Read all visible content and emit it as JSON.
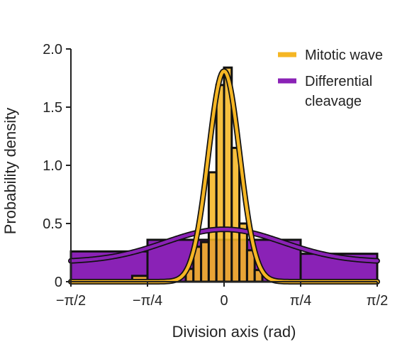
{
  "chart_data": {
    "type": "histogram",
    "title": "",
    "xlabel": "Division axis (rad)",
    "ylabel": "Probability density",
    "xlim": [
      -1.5708,
      1.5708
    ],
    "ylim": [
      0,
      2.0
    ],
    "x_ticks": [
      {
        "value": -1.5708,
        "label": "−π/2"
      },
      {
        "value": -0.7854,
        "label": "−π/4"
      },
      {
        "value": 0,
        "label": "0"
      },
      {
        "value": 0.7854,
        "label": "π/4"
      },
      {
        "value": 1.5708,
        "label": "π/2"
      }
    ],
    "y_ticks": [
      {
        "value": 0,
        "label": "0"
      },
      {
        "value": 0.5,
        "label": "0.5"
      },
      {
        "value": 1.0,
        "label": "1.0"
      },
      {
        "value": 1.5,
        "label": "1.5"
      },
      {
        "value": 2.0,
        "label": "2.0"
      }
    ],
    "legend_position": "top-right",
    "series": [
      {
        "name": "Differential cleavage",
        "color": "#8a22b6",
        "bins": [
          {
            "x0": -1.5708,
            "x1": -0.7854,
            "y": 0.26
          },
          {
            "x0": -0.7854,
            "x1": 0.7854,
            "y": 0.36
          },
          {
            "x0": 0.7854,
            "x1": 1.5708,
            "y": 0.24
          }
        ],
        "fit": {
          "kind": "gaussian",
          "peak": 0.45,
          "center": 0,
          "sigma": 0.6,
          "baseline": 0.17
        }
      },
      {
        "name": "Mitotic wave",
        "color": "#f5b624",
        "bins": [
          {
            "x0": -0.9425,
            "x1": -0.7854,
            "y": 0.05
          },
          {
            "x0": -0.3927,
            "x1": -0.3142,
            "y": 0.11
          },
          {
            "x0": -0.3142,
            "x1": -0.2356,
            "y": 0.3
          },
          {
            "x0": -0.2356,
            "x1": -0.1571,
            "y": 0.34
          },
          {
            "x0": -0.1571,
            "x1": -0.0785,
            "y": 0.94
          },
          {
            "x0": -0.0785,
            "x1": 0.0,
            "y": 1.69
          },
          {
            "x0": 0.0,
            "x1": 0.0785,
            "y": 1.84
          },
          {
            "x0": 0.0785,
            "x1": 0.1571,
            "y": 1.15
          },
          {
            "x0": 0.1571,
            "x1": 0.2356,
            "y": 0.5
          },
          {
            "x0": 0.2356,
            "x1": 0.3142,
            "y": 0.27
          },
          {
            "x0": 0.3142,
            "x1": 0.3927,
            "y": 0.1
          }
        ],
        "fit": {
          "kind": "gaussian",
          "peak": 1.81,
          "center": 0,
          "sigma": 0.16,
          "baseline": 0
        }
      }
    ]
  }
}
